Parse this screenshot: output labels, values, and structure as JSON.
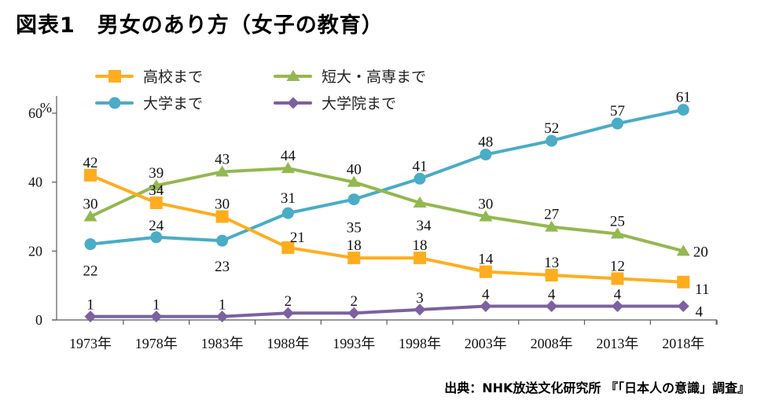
{
  "header": {
    "title": "図表1　男女のあり方（女子の教育）"
  },
  "footer": {
    "source": "出典：NHK放送文化研究所 『「日本人の意識」調査』"
  },
  "chart_data": {
    "type": "line",
    "title": "図表1　男女のあり方（女子の教育）",
    "xlabel": "",
    "ylabel": "%",
    "ylim": [
      0,
      60
    ],
    "yticks": [
      "0",
      "20",
      "40",
      "60"
    ],
    "ytick_values": [
      0,
      20,
      40,
      60
    ],
    "y_unit": "%",
    "grid": false,
    "legend_position": "top-left",
    "categories": [
      "1973年",
      "1978年",
      "1983年",
      "1988年",
      "1993年",
      "1998年",
      "2003年",
      "2008年",
      "2013年",
      "2018年"
    ],
    "series": [
      {
        "name": "高校まで",
        "color": "#FFAD1F",
        "marker": "square",
        "values": [
          42,
          34,
          30,
          21,
          18,
          18,
          14,
          13,
          12,
          11
        ]
      },
      {
        "name": "短大・高専まで",
        "color": "#93B850",
        "marker": "triangle",
        "values": [
          30,
          39,
          43,
          44,
          40,
          34,
          30,
          27,
          25,
          20
        ]
      },
      {
        "name": "大学まで",
        "color": "#4AACC6",
        "marker": "circle",
        "values": [
          22,
          24,
          23,
          31,
          35,
          41,
          48,
          52,
          57,
          61
        ]
      },
      {
        "name": "大学院まで",
        "color": "#7D60A0",
        "marker": "diamond",
        "values": [
          1,
          1,
          1,
          2,
          2,
          3,
          4,
          4,
          4,
          4
        ]
      }
    ],
    "axis_color": "#5a5a5a",
    "text_color": "#111111"
  }
}
